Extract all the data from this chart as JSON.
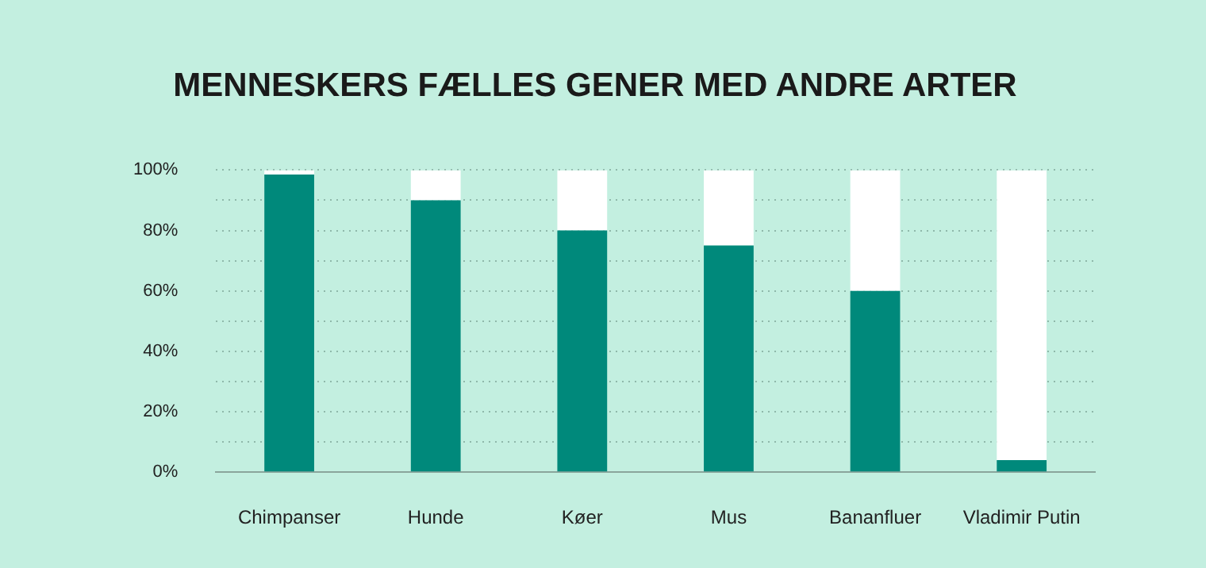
{
  "chart_data": {
    "type": "bar",
    "title": "MENNESKERS FÆLLES GENER MED ANDRE ARTER",
    "categories": [
      "Chimpanser",
      "Hunde",
      "Køer",
      "Mus",
      "Bananfluer",
      "Vladimir Putin"
    ],
    "stacked": true,
    "series": [
      {
        "color": "#00897b",
        "values": [
          98.5,
          90,
          80,
          75,
          60,
          4
        ]
      },
      {
        "color": "#ffffff",
        "values": [
          1.5,
          10,
          20,
          25,
          40,
          96
        ]
      }
    ],
    "ylim": [
      0,
      100
    ],
    "yticks": [
      {
        "value": 0,
        "label": "0%"
      },
      {
        "value": 10,
        "label": null
      },
      {
        "value": 20,
        "label": "20%"
      },
      {
        "value": 30,
        "label": null
      },
      {
        "value": 40,
        "label": "40%"
      },
      {
        "value": 50,
        "label": null
      },
      {
        "value": 60,
        "label": "60%"
      },
      {
        "value": 70,
        "label": null
      },
      {
        "value": 80,
        "label": "80%"
      },
      {
        "value": 90,
        "label": null
      },
      {
        "value": 100,
        "label": "100%"
      }
    ],
    "grid": "y",
    "legend": false
  }
}
